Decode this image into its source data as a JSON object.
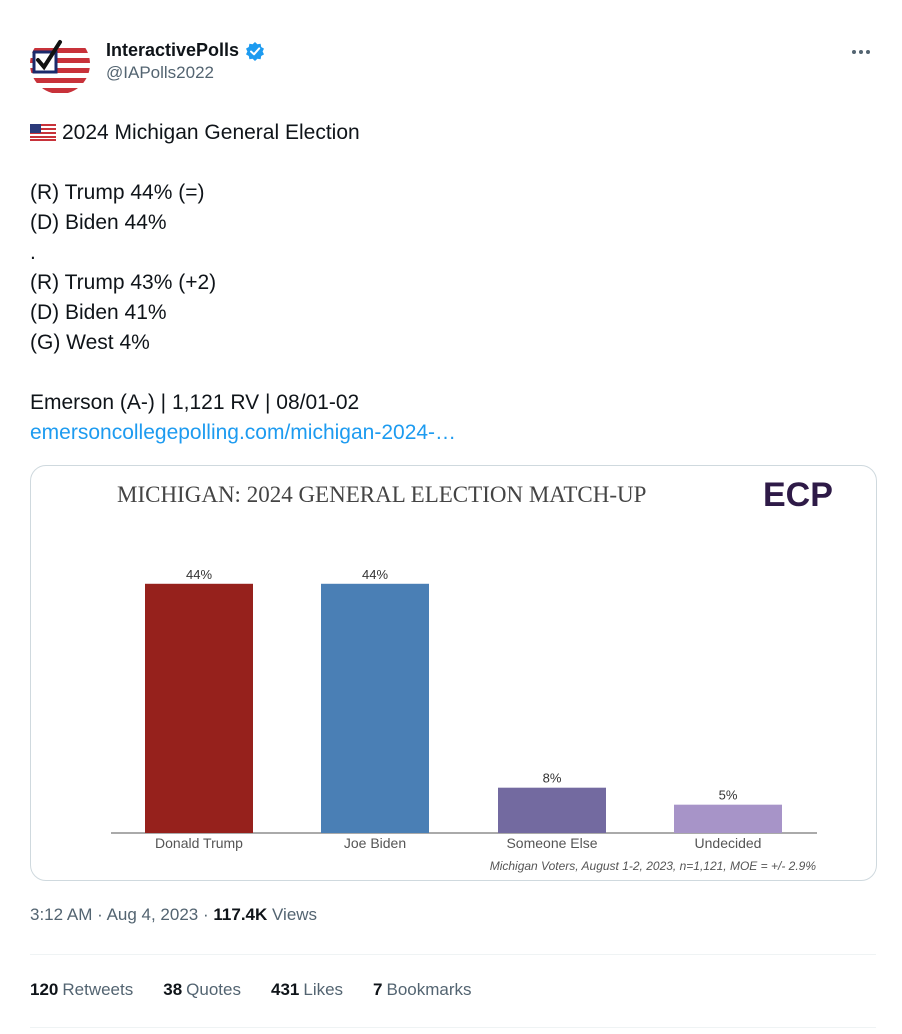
{
  "author": {
    "display_name": "InteractivePolls",
    "handle": "@IAPolls2022",
    "verified": true,
    "verified_color": "#1d9bf0"
  },
  "tweet": {
    "lines": [
      "2024 Michigan General Election",
      "",
      "(R) Trump 44% (=)",
      "(D) Biden 44%",
      ".",
      "(R) Trump 43% (+2)",
      "(D) Biden 41%",
      "(G) West 4%",
      "",
      "Emerson (A-) | 1,121 RV | 08/01-02"
    ],
    "flag_icon": "us-flag-icon",
    "link_text": "emersoncollegepolling.com/michigan-2024-…"
  },
  "card": {
    "logo_text": "ECP",
    "logo_color": "#2e1a47"
  },
  "chart_data": {
    "type": "bar",
    "title": "MICHIGAN: 2024 GENERAL ELECTION MATCH-UP",
    "categories": [
      "Donald Trump",
      "Joe Biden",
      "Someone Else",
      "Undecided"
    ],
    "values": [
      44,
      44,
      8,
      5
    ],
    "value_labels": [
      "44%",
      "44%",
      "8%",
      "5%"
    ],
    "colors": [
      "#96211c",
      "#4a7fb5",
      "#736aa0",
      "#a794c8"
    ],
    "ylim": [
      0,
      50
    ],
    "footnote": "Michigan Voters, August 1-2, 2023, n=1,121, MOE = +/- 2.9%",
    "grid": false,
    "legend": "none"
  },
  "meta": {
    "time": "3:12 AM",
    "date": "Aug 4, 2023",
    "views_count": "117.4K",
    "views_label": "Views"
  },
  "stats": [
    {
      "count": "120",
      "label": "Retweets"
    },
    {
      "count": "38",
      "label": "Quotes"
    },
    {
      "count": "431",
      "label": "Likes"
    },
    {
      "count": "7",
      "label": "Bookmarks"
    }
  ]
}
